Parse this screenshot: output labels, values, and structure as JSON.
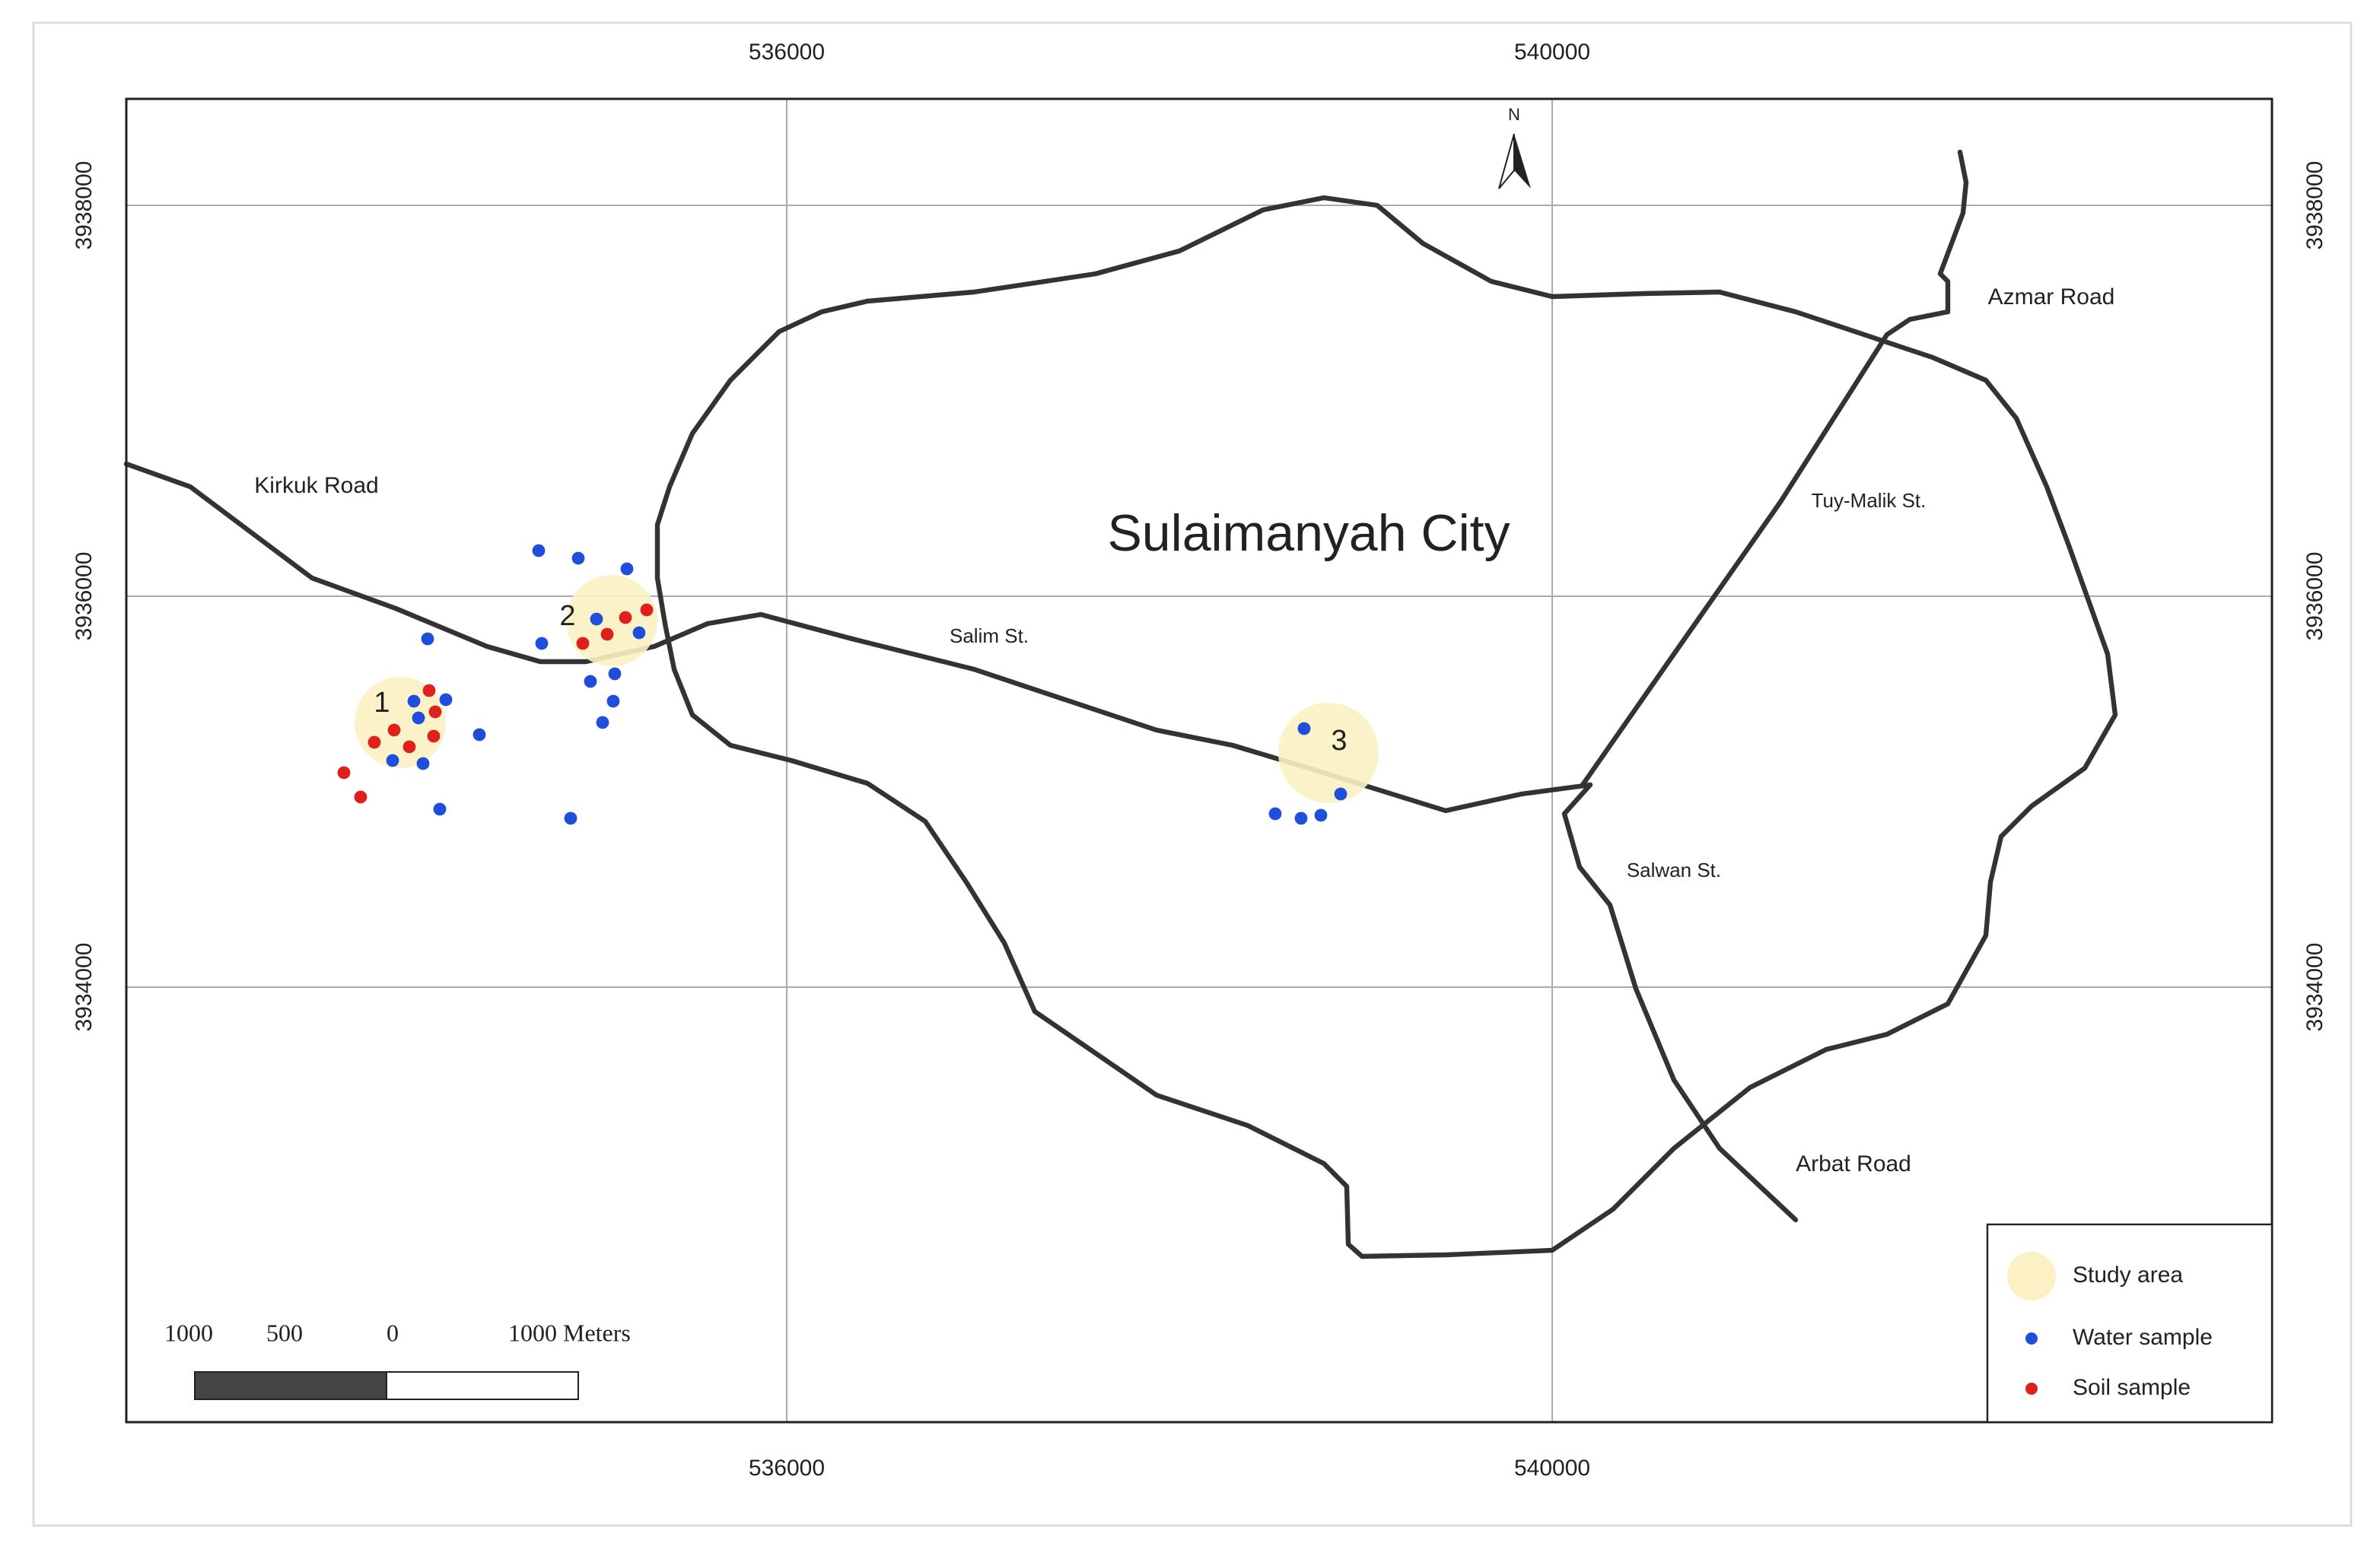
{
  "map": {
    "title": "Sulaimanyah City",
    "xlim": [
      532549,
      543761
    ],
    "ylim": [
      3931774,
      3938545
    ],
    "xticks": [
      536000,
      540000
    ],
    "yticks": [
      3934000,
      3936000,
      3938000
    ],
    "grid": true,
    "north": "N",
    "roads": [
      "Kirkuk Road",
      "Salim St.",
      "Azmar Road",
      "Tuy-Malik St.",
      "Salwan St.",
      "Arbat Road"
    ],
    "study_areas": [
      "1",
      "2",
      "3"
    ],
    "legend": [
      {
        "name": "Study area",
        "color": "#fbf1c4"
      },
      {
        "name": "Water sample",
        "color": "#1f4fd8"
      },
      {
        "name": "Soil sample",
        "color": "#e0201b"
      }
    ],
    "scale_bar": [
      "1000",
      "500",
      "0",
      "1000 Meters"
    ]
  }
}
